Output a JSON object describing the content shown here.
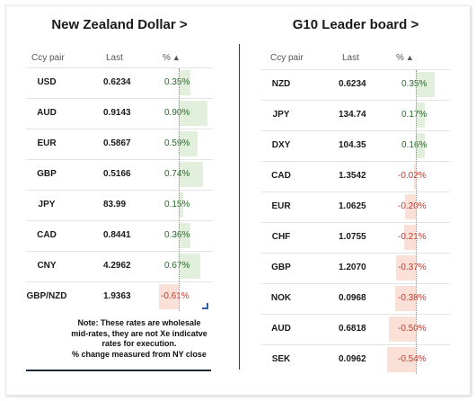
{
  "left_panel": {
    "title": "New Zealand Dollar >",
    "headers": {
      "pair": "Ccy pair",
      "last": "Last",
      "pct": "%",
      "sort_arrow": "▲"
    },
    "rows": [
      {
        "pair": "USD",
        "last": "0.6234",
        "pct_label": "0.35%",
        "pct": 0.35
      },
      {
        "pair": "AUD",
        "last": "0.9143",
        "pct_label": "0.90%",
        "pct": 0.9
      },
      {
        "pair": "EUR",
        "last": "0.5867",
        "pct_label": "0.59%",
        "pct": 0.59
      },
      {
        "pair": "GBP",
        "last": "0.5166",
        "pct_label": "0.74%",
        "pct": 0.74
      },
      {
        "pair": "JPY",
        "last": "83.99",
        "pct_label": "0.15%",
        "pct": 0.15
      },
      {
        "pair": "CAD",
        "last": "0.8441",
        "pct_label": "0.36%",
        "pct": 0.36
      },
      {
        "pair": "CNY",
        "last": "4.2962",
        "pct_label": "0.67%",
        "pct": 0.67
      },
      {
        "pair": "GBP/NZD",
        "last": "1.9363",
        "pct_label": "-0.61%",
        "pct": -0.61
      }
    ],
    "note": {
      "line1": "Note: These rates are wholesale",
      "line2": "mid-rates, they are not Xe indicatve",
      "line3": "rates for execution.",
      "line4": "% change measured from NY close"
    }
  },
  "right_panel": {
    "title": "G10 Leader board >",
    "headers": {
      "pair": "Ccy pair",
      "last": "Last",
      "pct": "%",
      "sort_arrow": "▲"
    },
    "rows": [
      {
        "pair": "NZD",
        "last": "0.6234",
        "pct_label": "0.35%",
        "pct": 0.35
      },
      {
        "pair": "JPY",
        "last": "134.74",
        "pct_label": "0.17%",
        "pct": 0.17
      },
      {
        "pair": "DXY",
        "last": "104.35",
        "pct_label": "0.16%",
        "pct": 0.16
      },
      {
        "pair": "CAD",
        "last": "1.3542",
        "pct_label": "-0.02%",
        "pct": -0.02
      },
      {
        "pair": "EUR",
        "last": "1.0625",
        "pct_label": "-0.20%",
        "pct": -0.2
      },
      {
        "pair": "CHF",
        "last": "1.0755",
        "pct_label": "-0.21%",
        "pct": -0.21
      },
      {
        "pair": "GBP",
        "last": "1.2070",
        "pct_label": "-0.37%",
        "pct": -0.37
      },
      {
        "pair": "NOK",
        "last": "0.0968",
        "pct_label": "-0.38%",
        "pct": -0.38
      },
      {
        "pair": "AUD",
        "last": "0.6818",
        "pct_label": "-0.50%",
        "pct": -0.5
      },
      {
        "pair": "SEK",
        "last": "0.0962",
        "pct_label": "-0.54%",
        "pct": -0.54
      }
    ]
  },
  "colors": {
    "positive_bar": "#e1efdc",
    "negative_bar": "#fbe0d8",
    "positive_text": "#2a6a2a",
    "negative_text": "#c0392b"
  }
}
